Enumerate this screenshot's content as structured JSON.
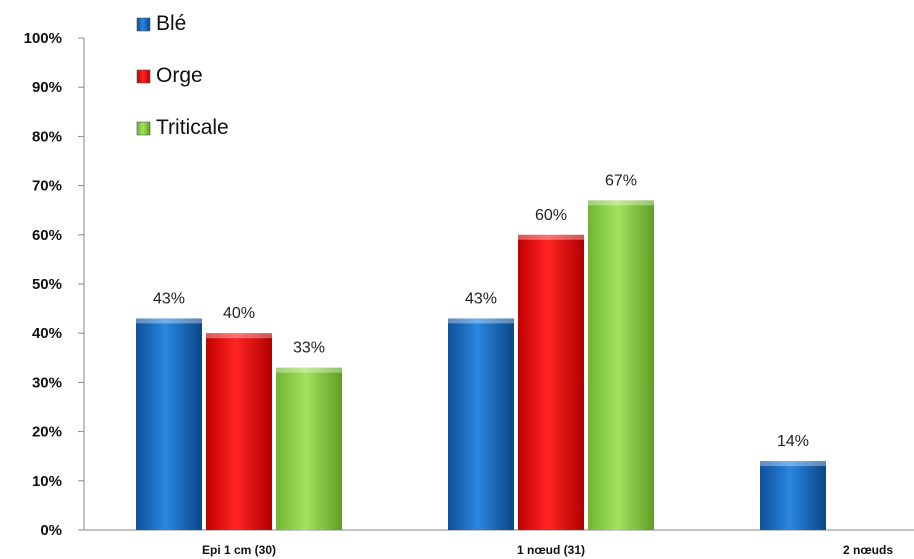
{
  "chart_data": {
    "type": "bar",
    "categories": [
      "Epi 1 cm (30)",
      "1 nœud (31)",
      "2 nœuds"
    ],
    "series": [
      {
        "name": "Blé",
        "values": [
          43,
          43,
          14
        ],
        "color": "#1a6fc7"
      },
      {
        "name": "Orge",
        "values": [
          40,
          60,
          null
        ],
        "color": "#ee1010"
      },
      {
        "name": "Triticale",
        "values": [
          33,
          67,
          null
        ],
        "color": "#8fd44a"
      }
    ],
    "data_labels": [
      [
        "43%",
        "43%",
        "14%"
      ],
      [
        "40%",
        "60%",
        ""
      ],
      [
        "33%",
        "67%",
        ""
      ]
    ],
    "y_ticks": [
      "0%",
      "10%",
      "20%",
      "30%",
      "40%",
      "50%",
      "60%",
      "70%",
      "80%",
      "90%",
      "100%"
    ],
    "ylim": [
      0,
      100
    ],
    "grid": false,
    "legend_position": "top-left"
  }
}
